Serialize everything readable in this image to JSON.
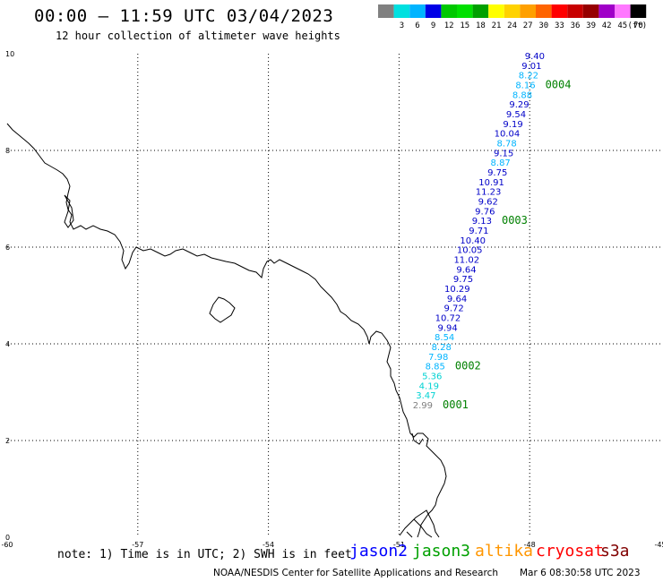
{
  "header": {
    "title": "00:00 – 11:59 UTC 03/04/2023",
    "subtitle": "12 hour collection of altimeter wave heights"
  },
  "color_scale": {
    "unit": "(ft)",
    "bins": [
      {
        "label": "",
        "color": "#808080"
      },
      {
        "label": "3",
        "color": "#00e0e0"
      },
      {
        "label": "6",
        "color": "#00b4ff"
      },
      {
        "label": "9",
        "color": "#0000e6"
      },
      {
        "label": "12",
        "color": "#00c800"
      },
      {
        "label": "15",
        "color": "#00e000"
      },
      {
        "label": "18",
        "color": "#00a000"
      },
      {
        "label": "21",
        "color": "#ffff00"
      },
      {
        "label": "24",
        "color": "#ffd200"
      },
      {
        "label": "27",
        "color": "#ffa000"
      },
      {
        "label": "30",
        "color": "#ff6400"
      },
      {
        "label": "33",
        "color": "#ff0000"
      },
      {
        "label": "36",
        "color": "#c80000"
      },
      {
        "label": "39",
        "color": "#960000"
      },
      {
        "label": "42",
        "color": "#a000c8"
      },
      {
        "label": "45",
        "color": "#ff78ff"
      },
      {
        "label": "70",
        "color": "#000000"
      }
    ]
  },
  "map": {
    "lon_range": [
      -60,
      -45
    ],
    "lat_range": [
      0,
      10
    ],
    "lon_ticks": [
      "-60",
      "-57",
      "-54",
      "-51",
      "-48",
      "-45"
    ],
    "lat_ticks": [
      "10",
      "8",
      "6",
      "4",
      "2",
      "0"
    ]
  },
  "track": {
    "color_light": "#00b4ff",
    "color_dark": "#0000c8",
    "color_cyan": "#00d2d2",
    "color_gray": "#808080",
    "points": [
      {
        "v": "9.40",
        "c": "dark"
      },
      {
        "v": "9.01",
        "c": "dark"
      },
      {
        "v": "8.22",
        "c": "light"
      },
      {
        "v": "8.16",
        "c": "light"
      },
      {
        "v": "8.88",
        "c": "light"
      },
      {
        "v": "9.29",
        "c": "dark"
      },
      {
        "v": "9.54",
        "c": "dark"
      },
      {
        "v": "9.19",
        "c": "dark"
      },
      {
        "v": "10.04",
        "c": "dark"
      },
      {
        "v": "8.78",
        "c": "light"
      },
      {
        "v": "9.15",
        "c": "dark"
      },
      {
        "v": "8.87",
        "c": "light"
      },
      {
        "v": "9.75",
        "c": "dark"
      },
      {
        "v": "10.91",
        "c": "dark"
      },
      {
        "v": "11.23",
        "c": "dark"
      },
      {
        "v": "9.62",
        "c": "dark"
      },
      {
        "v": "9.76",
        "c": "dark"
      },
      {
        "v": "9.13",
        "c": "dark"
      },
      {
        "v": "9.71",
        "c": "dark"
      },
      {
        "v": "10.40",
        "c": "dark"
      },
      {
        "v": "10.05",
        "c": "dark"
      },
      {
        "v": "11.02",
        "c": "dark"
      },
      {
        "v": "9.64",
        "c": "dark"
      },
      {
        "v": "9.75",
        "c": "dark"
      },
      {
        "v": "10.29",
        "c": "dark"
      },
      {
        "v": "9.64",
        "c": "dark"
      },
      {
        "v": "9.72",
        "c": "dark"
      },
      {
        "v": "10.72",
        "c": "dark"
      },
      {
        "v": "9.94",
        "c": "dark"
      },
      {
        "v": "8.54",
        "c": "light"
      },
      {
        "v": "8.28",
        "c": "light"
      },
      {
        "v": "7.98",
        "c": "light"
      },
      {
        "v": "8.85",
        "c": "light"
      },
      {
        "v": "5.36",
        "c": "cyan"
      },
      {
        "v": "4.19",
        "c": "cyan"
      },
      {
        "v": "3.47",
        "c": "cyan"
      },
      {
        "v": "2.99",
        "c": "gray"
      }
    ],
    "time_labels": [
      {
        "t": "0004",
        "after_index": 3
      },
      {
        "t": "0003",
        "after_index": 17
      },
      {
        "t": "0002",
        "after_index": 32
      },
      {
        "t": "0001",
        "after_index": 36
      }
    ],
    "time_label_color": "#008000"
  },
  "footer": {
    "note": "note: 1) Time is in UTC; 2) SWH is in feet",
    "satellites": [
      {
        "name": "jason2",
        "color": "#0000ff"
      },
      {
        "name": "jason3",
        "color": "#00a000"
      },
      {
        "name": "altika",
        "color": "#ff9600"
      },
      {
        "name": "cryosat",
        "color": "#ff0000"
      },
      {
        "name": "s3a",
        "color": "#800000"
      }
    ],
    "credit": "NOAA/NESDIS Center for Satellite Applications and Research",
    "timestamp": "Mar  6 08:30:58 UTC 2023"
  }
}
